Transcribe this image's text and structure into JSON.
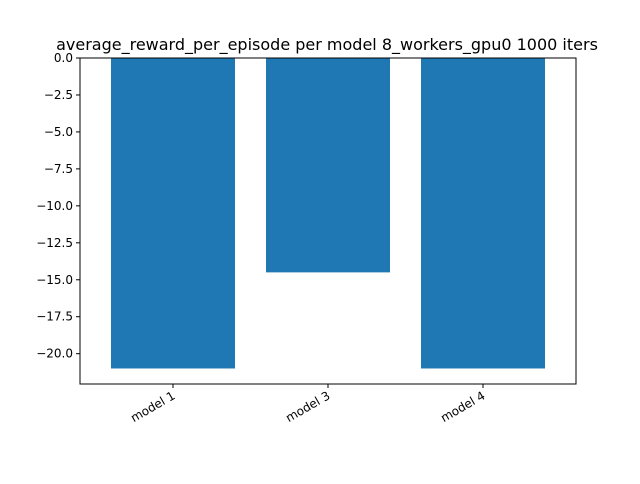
{
  "chart_data": {
    "type": "bar",
    "title": "average_reward_per_episode per model 8_workers_gpu0 1000 iters",
    "xlabel": "",
    "ylabel": "",
    "categories": [
      "model 1",
      "model 3",
      "model 4"
    ],
    "values": [
      -21.0,
      -14.5,
      -21.0
    ],
    "ylim": [
      -22.05,
      0.0
    ],
    "yticks": [
      0.0,
      -2.5,
      -5.0,
      -7.5,
      -10.0,
      -12.5,
      -15.0,
      -17.5,
      -20.0
    ],
    "ytick_labels": [
      "0.0",
      "−2.5",
      "−5.0",
      "−7.5",
      "−10.0",
      "−12.5",
      "−15.0",
      "−17.5",
      "−20.0"
    ],
    "grid": false,
    "bar_color": "#1f77b4",
    "xtick_rotation": "rotated"
  }
}
